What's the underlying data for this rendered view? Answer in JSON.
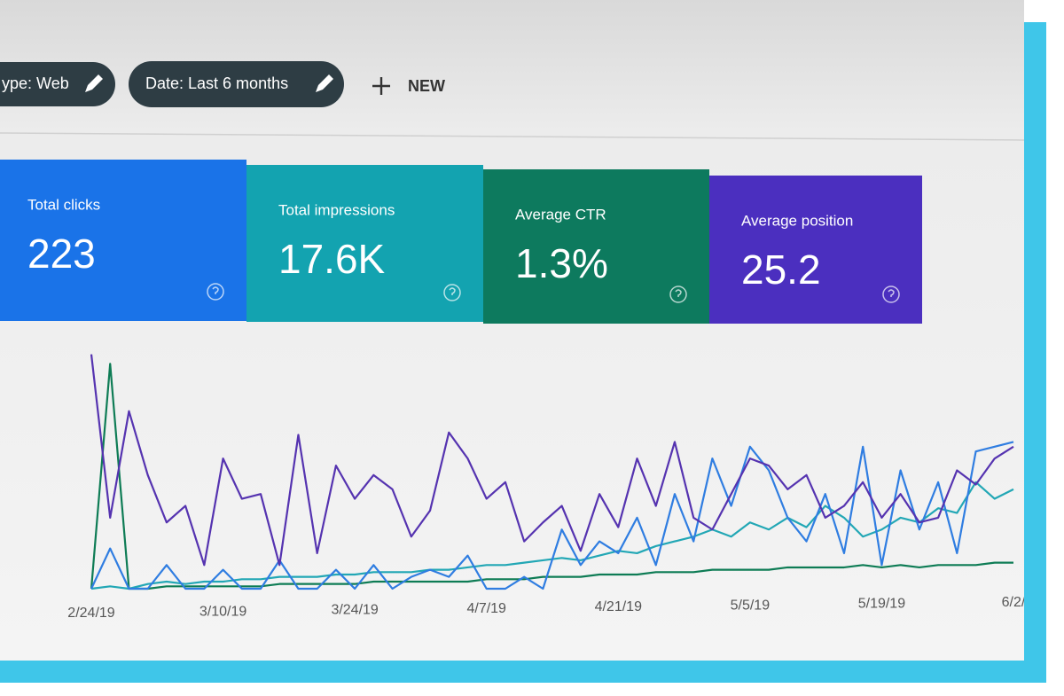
{
  "filters": [
    "ype: Web",
    "Date: Last 6 months"
  ],
  "new_button": "NEW",
  "cards": [
    {
      "label": "Total clicks",
      "value": "223",
      "color": "#1a73e8"
    },
    {
      "label": "Total impressions",
      "value": "17.6K",
      "color": "#13a3b0"
    },
    {
      "label": "Average CTR",
      "value": "1.3%",
      "color": "#0d7a5e"
    },
    {
      "label": "Average position",
      "value": "25.2",
      "color": "#4b2fbf"
    }
  ],
  "chart_data": {
    "type": "line",
    "categories": [
      "2/24/19",
      null,
      null,
      null,
      null,
      null,
      null,
      "3/10/19",
      null,
      null,
      null,
      null,
      null,
      null,
      "3/24/19",
      null,
      null,
      null,
      null,
      null,
      null,
      "4/7/19",
      null,
      null,
      null,
      null,
      null,
      null,
      "4/21/19",
      null,
      null,
      null,
      null,
      null,
      null,
      "5/5/19",
      null,
      null,
      null,
      null,
      null,
      null,
      "5/19/19",
      null,
      null,
      null,
      null,
      null,
      null,
      "6/2/"
    ],
    "ylim": [
      0,
      100
    ],
    "series": [
      {
        "color": "#0e7c55",
        "values": [
          0,
          95,
          0,
          0,
          1,
          1,
          1,
          1,
          1,
          1,
          2,
          2,
          2,
          2,
          2,
          3,
          3,
          3,
          3,
          3,
          3,
          4,
          4,
          4,
          5,
          5,
          5,
          6,
          6,
          6,
          7,
          7,
          7,
          8,
          8,
          8,
          8,
          9,
          9,
          9,
          9,
          10,
          9,
          10,
          9,
          10,
          10,
          10,
          11,
          11
        ]
      },
      {
        "color": "#22a7b5",
        "values": [
          0,
          1,
          0,
          2,
          3,
          2,
          3,
          3,
          4,
          4,
          5,
          5,
          5,
          6,
          6,
          7,
          7,
          7,
          8,
          8,
          9,
          10,
          10,
          11,
          12,
          13,
          12,
          14,
          16,
          15,
          18,
          20,
          22,
          25,
          22,
          28,
          25,
          30,
          26,
          35,
          30,
          22,
          25,
          30,
          28,
          34,
          32,
          45,
          38,
          42
        ]
      },
      {
        "color": "#2f7de1",
        "values": [
          0,
          17,
          0,
          0,
          10,
          0,
          0,
          8,
          0,
          0,
          12,
          0,
          0,
          8,
          0,
          10,
          0,
          5,
          8,
          5,
          14,
          0,
          0,
          5,
          0,
          25,
          10,
          20,
          15,
          30,
          10,
          40,
          20,
          55,
          35,
          60,
          50,
          30,
          20,
          40,
          15,
          60,
          10,
          50,
          25,
          45,
          15,
          58,
          60,
          62
        ]
      },
      {
        "color": "#5533b0",
        "values": [
          99,
          30,
          75,
          48,
          28,
          35,
          10,
          55,
          38,
          40,
          10,
          65,
          15,
          52,
          38,
          48,
          42,
          22,
          33,
          66,
          55,
          38,
          45,
          20,
          28,
          35,
          16,
          40,
          26,
          55,
          35,
          62,
          30,
          25,
          40,
          55,
          52,
          42,
          48,
          30,
          35,
          45,
          30,
          40,
          28,
          30,
          50,
          44,
          55,
          60
        ]
      }
    ]
  }
}
